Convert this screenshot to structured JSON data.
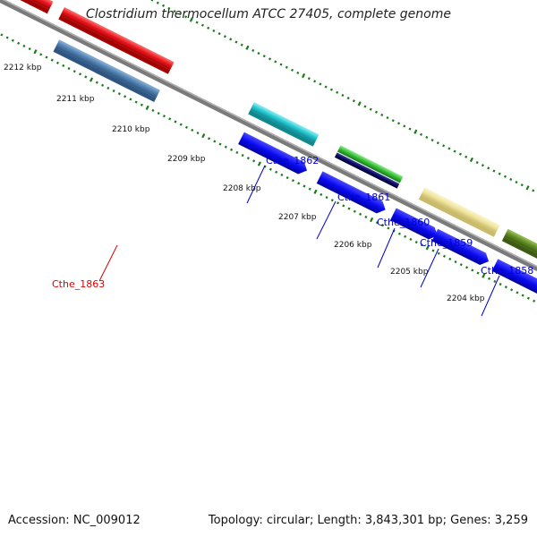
{
  "title": "Clostridium thermocellum ATCC 27405, complete genome",
  "footer": {
    "accession": "Accession: NC_009012",
    "summary": "Topology: circular; Length: 3,843,301 bp; Genes: 3,259"
  },
  "ticks": [
    {
      "label": "2212 kbp"
    },
    {
      "label": "2211 kbp"
    },
    {
      "label": "2210 kbp"
    },
    {
      "label": "2209 kbp"
    },
    {
      "label": "2208 kbp"
    },
    {
      "label": "2207 kbp"
    },
    {
      "label": "2206 kbp"
    },
    {
      "label": "2205 kbp"
    },
    {
      "label": "2204 kbp"
    }
  ],
  "gene_labels": [
    {
      "name": "Cthe_1863",
      "color": "#dd0000"
    },
    {
      "name": "Cthe_1862",
      "color": "#0000cc"
    },
    {
      "name": "Cthe_1861",
      "color": "#0000cc"
    },
    {
      "name": "Cthe_1860",
      "color": "#0000cc"
    },
    {
      "name": "Cthe_1859",
      "color": "#0000cc"
    },
    {
      "name": "Cthe_1858",
      "color": "#0000cc"
    }
  ],
  "colors": {
    "backbone": "#777777",
    "tick": "#1a7a1a",
    "red_gene": "#e8161c",
    "steel_gene": "#4f7fb0",
    "blue_cds": "#0a0af0",
    "cyan_gene": "#22c8d0",
    "green_gene": "#33bb33",
    "navy_gene": "#0a0a60",
    "khaki_gene": "#efe39a",
    "olive_gene": "#5f8a22"
  }
}
